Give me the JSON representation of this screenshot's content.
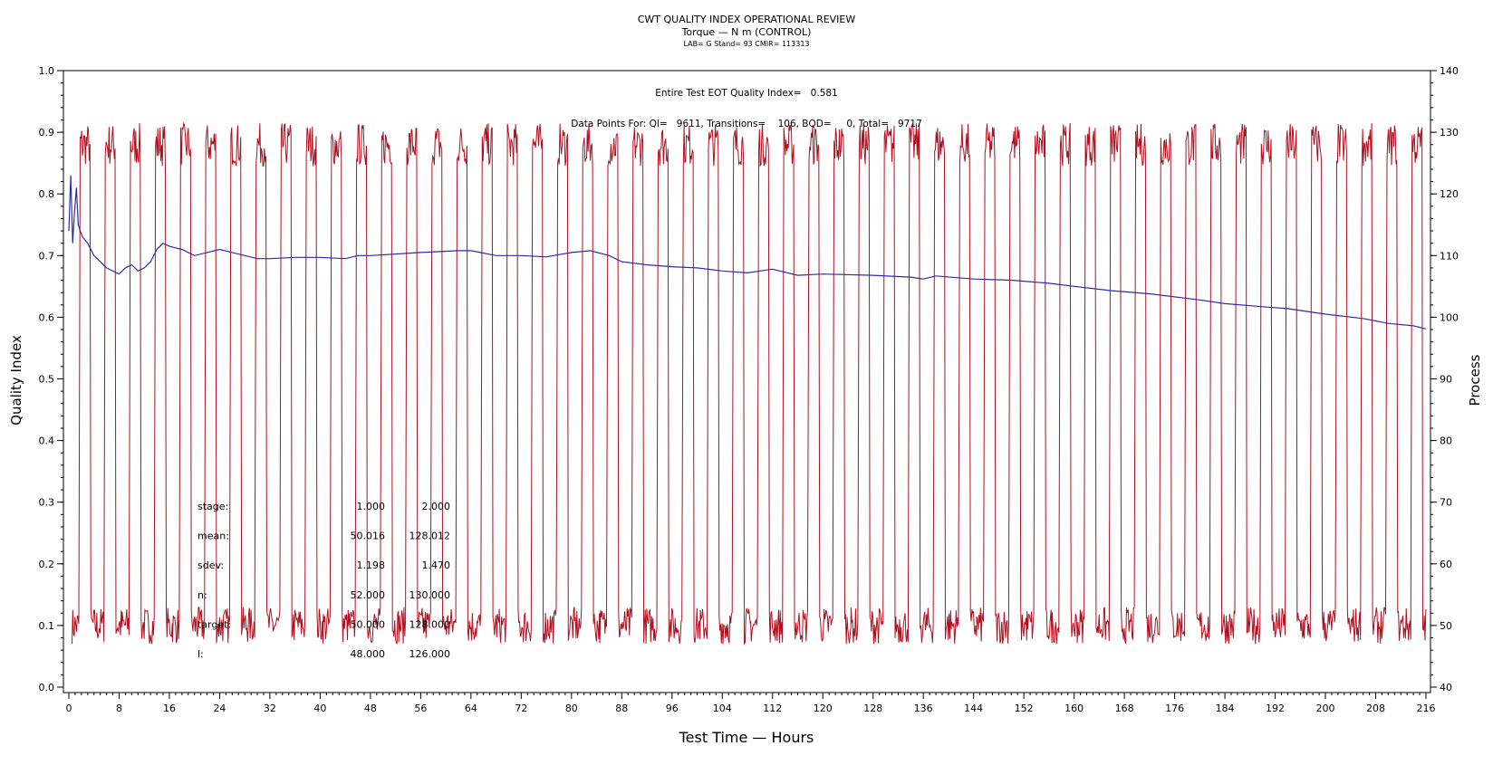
{
  "chart_data": {
    "type": "line",
    "title": "CWT QUALITY INDEX OPERATIONAL REVIEW",
    "subtitle": "Torque — N m (CONTROL)",
    "subtitle2": "LAB= G Stand= 93 CMIR= 113313",
    "xlabel": "Test Time — Hours",
    "ylabel_left": "Quality Index",
    "ylabel_right": "Process",
    "xlim": [
      0,
      216
    ],
    "ylim_left": [
      0.0,
      1.0
    ],
    "ylim_right": [
      40,
      140
    ],
    "x_ticks": [
      "0",
      "8",
      "16",
      "24",
      "32",
      "40",
      "48",
      "56",
      "64",
      "72",
      "80",
      "88",
      "96",
      "104",
      "112",
      "120",
      "128",
      "136",
      "144",
      "152",
      "160",
      "168",
      "176",
      "184",
      "192",
      "200",
      "208",
      "216"
    ],
    "y_ticks_left": [
      "0.0",
      "0.1",
      "0.2",
      "0.3",
      "0.4",
      "0.5",
      "0.6",
      "0.7",
      "0.8",
      "0.9",
      "1.0"
    ],
    "y_ticks_right": [
      "40",
      "50",
      "60",
      "70",
      "80",
      "90",
      "100",
      "110",
      "120",
      "130",
      "140"
    ],
    "grid": false,
    "annotations": {
      "eot": "Entire Test EOT Quality Index=   0.581",
      "datapoints": "Data Points For: QI=   9611, Transitions=    106, BQD=     0, Total=   9717"
    },
    "stats_table": {
      "rows": [
        {
          "label": "stage:",
          "v1": "1.000",
          "v2": "2.000"
        },
        {
          "label": "mean:",
          "v1": "50.016",
          "v2": "128.012"
        },
        {
          "label": "sdev:",
          "v1": "1.198",
          "v2": "1.470"
        },
        {
          "label": "n:",
          "v1": "52.000",
          "v2": "130.000"
        },
        {
          "label": "target:",
          "v1": "50.000",
          "v2": "128.000"
        },
        {
          "label": "l:",
          "v1": "48.000",
          "v2": "126.000"
        }
      ]
    },
    "series": [
      {
        "color": "#2b2bb0",
        "axis": "left",
        "x": [
          0.0,
          0.3,
          0.6,
          0.9,
          1.2,
          1.5,
          1.8,
          2.2,
          3.0,
          4.0,
          5.0,
          6.0,
          7.0,
          8.0,
          9.0,
          10.0,
          11.0,
          12.0,
          13.0,
          14.0,
          15.0,
          16.0,
          18.0,
          20.0,
          22.0,
          24.0,
          26.0,
          28.0,
          30.0,
          32.0,
          36.0,
          40.0,
          44.0,
          46.0,
          48.0,
          56.0,
          62.0,
          64.0,
          68.0,
          72.0,
          76.0,
          80.0,
          83.0,
          86.0,
          88.0,
          92.0,
          96.0,
          100.0,
          104.0,
          108.0,
          110.0,
          112.0,
          116.0,
          120.0,
          128.0,
          134.0,
          136.0,
          138.0,
          144.0,
          150.0,
          156.0,
          160.0,
          166.0,
          172.0,
          180.0,
          184.0,
          190.0,
          194.0,
          200.0,
          206.0,
          210.0,
          214.0,
          216.0
        ],
        "y": [
          0.74,
          0.83,
          0.72,
          0.77,
          0.81,
          0.75,
          0.74,
          0.73,
          0.72,
          0.7,
          0.69,
          0.68,
          0.675,
          0.67,
          0.68,
          0.685,
          0.675,
          0.68,
          0.69,
          0.71,
          0.72,
          0.715,
          0.71,
          0.7,
          0.705,
          0.71,
          0.705,
          0.7,
          0.695,
          0.695,
          0.697,
          0.697,
          0.695,
          0.7,
          0.7,
          0.705,
          0.708,
          0.708,
          0.7,
          0.7,
          0.698,
          0.705,
          0.708,
          0.7,
          0.69,
          0.685,
          0.682,
          0.68,
          0.675,
          0.672,
          0.675,
          0.678,
          0.668,
          0.67,
          0.668,
          0.665,
          0.662,
          0.667,
          0.662,
          0.66,
          0.655,
          0.65,
          0.643,
          0.638,
          0.628,
          0.622,
          0.617,
          0.614,
          0.605,
          0.598,
          0.59,
          0.586,
          0.581
        ]
      },
      {
        "color": "#b01020",
        "axis": "right",
        "cycle_hours": 4,
        "low_level": 50,
        "high_level": 128,
        "cycle_starts": [
          0.5,
          4.5,
          8.5,
          12.5,
          16.5,
          20.5,
          24.5,
          28.5,
          32.5,
          36.5,
          40.5,
          44.5,
          48.5,
          52.5,
          56.5,
          60.5,
          64.5,
          68.5,
          72.5,
          76.5,
          80.5,
          84.5,
          88.5,
          92.5,
          96.5,
          100.5,
          104.5,
          108.5,
          112.5,
          116.5,
          120.5,
          124.5,
          128.5,
          132.5,
          136.5,
          140.5,
          144.5,
          148.5,
          152.5,
          156.5,
          160.5,
          164.5,
          168.5,
          172.5,
          176.5,
          180.5,
          184.5,
          188.5,
          192.5,
          196.5,
          200.5,
          204.5,
          208.5,
          212.5
        ]
      }
    ]
  }
}
